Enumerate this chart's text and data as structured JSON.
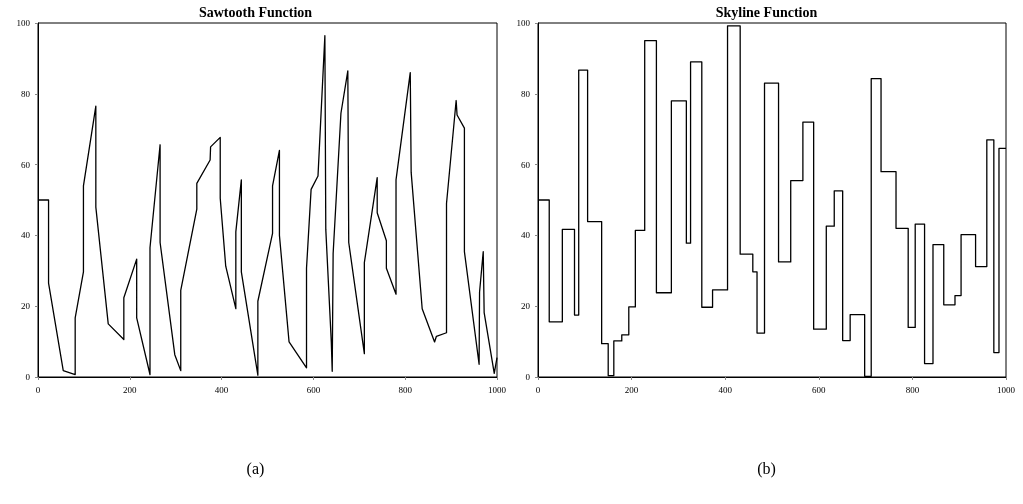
{
  "chart_data": [
    {
      "type": "line",
      "title": "Sawtooth Function",
      "annotations": [
        "(a)"
      ],
      "xlim": [
        0,
        1000
      ],
      "xticks": [
        0,
        200,
        400,
        600,
        800,
        1000
      ],
      "ylim": [
        0,
        100
      ],
      "yticks": [
        0,
        20,
        40,
        60,
        80,
        100
      ],
      "x": [
        0,
        23,
        23,
        55,
        81,
        81,
        99,
        99,
        126,
        126,
        153,
        187,
        187,
        215,
        215,
        244,
        244,
        266,
        266,
        298,
        311,
        311,
        346,
        346,
        375,
        376,
        397,
        397,
        409,
        431,
        431,
        443,
        443,
        479,
        479,
        511,
        511,
        526,
        526,
        547,
        585,
        585,
        595,
        610,
        625,
        627,
        639,
        641,
        643,
        660,
        675,
        677,
        711,
        711,
        739,
        739,
        759,
        759,
        780,
        780,
        811,
        813,
        837,
        864,
        868,
        890,
        890,
        911,
        913,
        929,
        929,
        961,
        962,
        970,
        972,
        994,
        1000
      ],
      "series": [
        {
          "color": "#000000",
          "values": [
            50,
            50,
            26.5,
            1.8,
            0.7,
            16.7,
            29.7,
            54,
            76.5,
            48,
            15,
            10.6,
            22.4,
            33.3,
            16.7,
            0.7,
            36.5,
            65.6,
            38,
            6.3,
            1.8,
            24.5,
            47.4,
            54.7,
            61.3,
            65,
            67.7,
            50.5,
            31.3,
            19.3,
            41,
            55.7,
            29.7,
            0.5,
            21.4,
            40.6,
            54,
            64,
            40,
            9.9,
            2.6,
            30.7,
            53,
            56.8,
            96.4,
            41.7,
            9.9,
            1.6,
            34.9,
            74.5,
            86.5,
            38,
            6.6,
            32.3,
            56.3,
            46.4,
            38.5,
            30.7,
            23.4,
            55.7,
            86,
            57.8,
            19.3,
            9.9,
            11.5,
            12.5,
            49,
            78.1,
            74,
            70.3,
            35.4,
            3.6,
            24,
            35.4,
            18.2,
            1,
            5.5
          ]
        }
      ]
    },
    {
      "type": "step",
      "title": "Skyline Function",
      "annotations": [
        "(b)"
      ],
      "xlim": [
        0,
        1000
      ],
      "xticks": [
        0,
        200,
        400,
        600,
        800,
        1000
      ],
      "ylim": [
        0,
        100
      ],
      "yticks": [
        0,
        20,
        40,
        60,
        80,
        100
      ],
      "x": [
        0,
        24,
        52,
        78,
        87,
        106,
        136,
        150,
        162,
        179,
        194,
        208,
        228,
        253,
        285,
        317,
        326,
        350,
        373,
        405,
        432,
        459,
        468,
        484,
        514,
        540,
        566,
        589,
        616,
        633,
        651,
        667,
        698,
        712,
        733,
        765,
        791,
        806,
        826,
        844,
        867,
        891,
        904,
        935,
        959,
        974,
        985,
        1000
      ],
      "series": [
        {
          "color": "#000000",
          "values": [
            50,
            15.6,
            41.7,
            17.5,
            86.7,
            43.9,
            9.4,
            0.4,
            10.2,
            11.9,
            19.8,
            41.4,
            95,
            23.8,
            78,
            37.8,
            89,
            19.7,
            24.6,
            99.2,
            34.7,
            29.7,
            12.4,
            83,
            32.5,
            55.5,
            72,
            13.5,
            42.6,
            52.6,
            10.3,
            17.6,
            0.2,
            84.3,
            58,
            42,
            14,
            43.2,
            3.8,
            37.4,
            20.4,
            23,
            40.2,
            31.2,
            67,
            6.9,
            64.6,
            64.6
          ]
        }
      ]
    }
  ]
}
